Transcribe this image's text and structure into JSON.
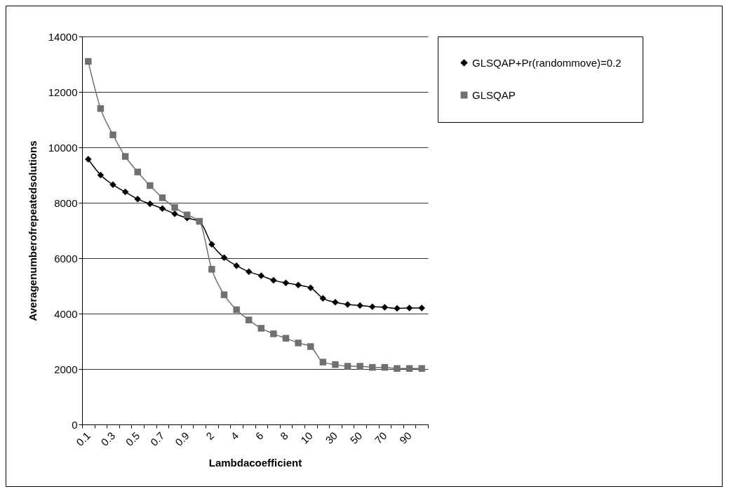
{
  "chart_data": {
    "type": "line",
    "xlabel": "Lambdacoefficient",
    "ylabel": "Averagenumberofrepeatedsolutions",
    "categories": [
      "0.1",
      null,
      "0.3",
      null,
      "0.5",
      null,
      "0.7",
      null,
      "0.9",
      null,
      "2",
      null,
      "4",
      null,
      "6",
      null,
      "8",
      null,
      "10",
      null,
      "30",
      null,
      "50",
      null,
      "70",
      null,
      "90",
      null
    ],
    "series": [
      {
        "name": "GLSQAP+Pr(randommove)=0.2",
        "color": "#000000",
        "marker": "diamond",
        "values": [
          9570,
          9000,
          8650,
          8390,
          8130,
          7960,
          7790,
          7600,
          7450,
          7330,
          6500,
          6020,
          5730,
          5510,
          5370,
          5200,
          5110,
          5030,
          4930,
          4550,
          4410,
          4330,
          4290,
          4250,
          4230,
          4190,
          4200,
          4200
        ]
      },
      {
        "name": "GLSQAP",
        "color": "#707070",
        "marker": "square",
        "values": [
          13100,
          11400,
          10450,
          9670,
          9110,
          8620,
          8180,
          7830,
          7560,
          7330,
          5600,
          4680,
          4140,
          3770,
          3470,
          3270,
          3110,
          2940,
          2810,
          2250,
          2160,
          2100,
          2100,
          2060,
          2060,
          2020,
          2020,
          2020
        ]
      }
    ],
    "ylim": [
      0,
      14000
    ],
    "yticks": [
      0,
      2000,
      4000,
      6000,
      8000,
      10000,
      12000,
      14000
    ],
    "grid": "y",
    "legend": "right"
  }
}
